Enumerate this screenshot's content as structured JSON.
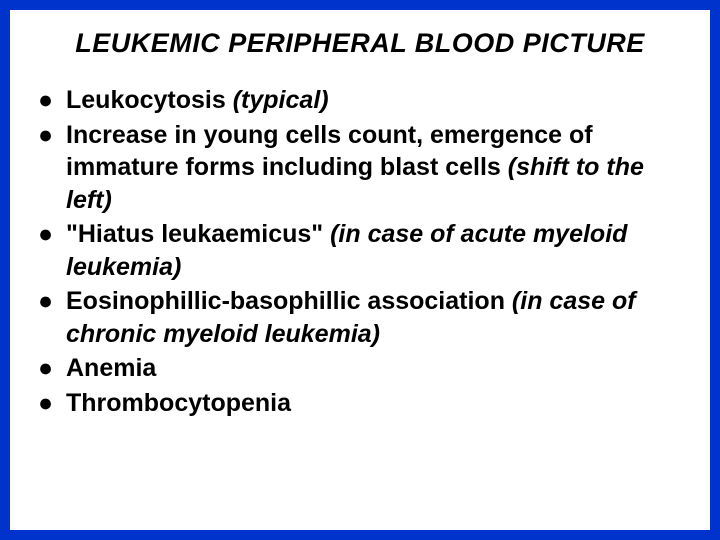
{
  "slide": {
    "title": "LEUKEMIC PERIPHERAL BLOOD PICTURE",
    "background_color": "#0033cc",
    "content_background": "#ffffff",
    "title_fontsize": 27,
    "body_fontsize": 25,
    "text_color": "#000000",
    "bullet_color": "#000000",
    "bullets": [
      {
        "pre": "Leukocytosis ",
        "italic": "(typical)",
        "post": ""
      },
      {
        "pre": "Increase in young cells count, emergence of immature forms including blast cells ",
        "italic": "(shift to the left)",
        "post": ""
      },
      {
        "pre": "\"Hiatus leukaemicus\" ",
        "italic": "(in case of acute myeloid leukemia)",
        "post": ""
      },
      {
        "pre": "Eosinophillic-basophillic association ",
        "italic": "(in case of chronic myeloid leukemia)",
        "post": ""
      },
      {
        "pre": "Anemia",
        "italic": "",
        "post": ""
      },
      {
        "pre": "Thrombocytopenia",
        "italic": "",
        "post": ""
      }
    ]
  }
}
